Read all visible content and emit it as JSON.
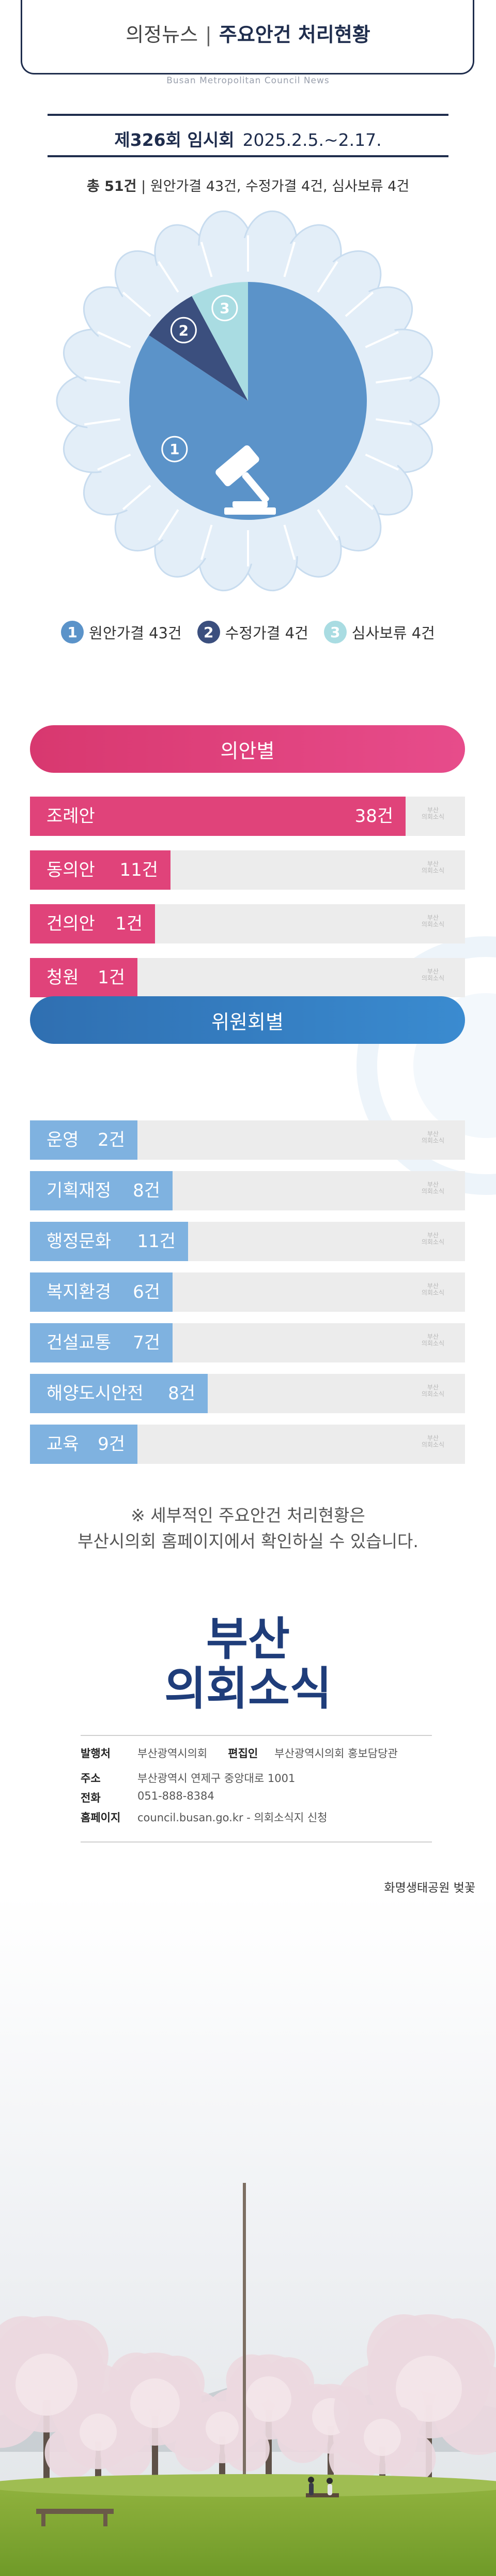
{
  "header": {
    "category": "의정뉴스",
    "title": "주요안건 처리현황",
    "subtitle": "Busan Metropolitan Council News"
  },
  "session": {
    "name": "제326회 임시회",
    "dates": "2025.2.5.~2.17."
  },
  "summary": {
    "total": "총 51건",
    "detail": "원안가결 43건, 수정가결 4건, 심사보류 4건"
  },
  "legend": [
    {
      "num": "1",
      "label": "원안가결 43건",
      "color": "#5b93c9"
    },
    {
      "num": "2",
      "label": "수정가결 4건",
      "color": "#3b4f7e"
    },
    {
      "num": "3",
      "label": "심사보류 4건",
      "color": "#a9dce2"
    }
  ],
  "sections": {
    "bill_type": "의안별",
    "committee": "위원회별"
  },
  "chart_data": [
    {
      "type": "pie",
      "title": "",
      "categories": [
        "원안가결",
        "수정가결",
        "심사보류"
      ],
      "values": [
        43,
        4,
        4
      ],
      "labels": [
        "1",
        "2",
        "3"
      ],
      "colors": [
        "#5b93c9",
        "#3b4f7e",
        "#a9dce2"
      ]
    },
    {
      "type": "bar",
      "title": "의안별",
      "categories": [
        "조례안",
        "동의안",
        "건의안",
        "청원"
      ],
      "values": [
        38,
        11,
        1,
        1
      ],
      "value_labels": [
        "38건",
        "11건",
        "1건",
        "1건"
      ],
      "color": "#e0437a",
      "xlim": [
        0,
        44
      ]
    },
    {
      "type": "bar",
      "title": "위원회별",
      "categories": [
        "운영",
        "기획재정",
        "행정문화",
        "복지환경",
        "건설교통",
        "해양도시안전",
        "교육"
      ],
      "values": [
        2,
        8,
        11,
        6,
        7,
        8,
        9
      ],
      "value_labels": [
        "2건",
        "8건",
        "11건",
        "6건",
        "7건",
        "8건",
        "9건"
      ],
      "color": "#7fb2e0",
      "xlim": [
        0,
        44
      ]
    }
  ],
  "bar_logo": "부산\n의회소식",
  "note": {
    "line1": "※ 세부적인 주요안건 처리현황은",
    "line2": "부산시의회 홈페이지에서 확인하실 수 있습니다."
  },
  "logo": {
    "line1": "부산",
    "line2": "의회소식"
  },
  "publisher": {
    "publisher_label": "발행처",
    "publisher_value": "부산광역시의회",
    "editor_label": "편집인",
    "editor_value": "부산광역시의회 홍보담당관",
    "address_label": "주소",
    "address_value": "부산광역시 연제구 중앙대로 1001",
    "phone_label": "전화",
    "phone_value": "051-888-8384",
    "homepage_label": "홈페이지",
    "homepage_value": "council.busan.go.kr - 의회소식지 신청"
  },
  "photo_caption": "화명생태공원 벚꽃"
}
